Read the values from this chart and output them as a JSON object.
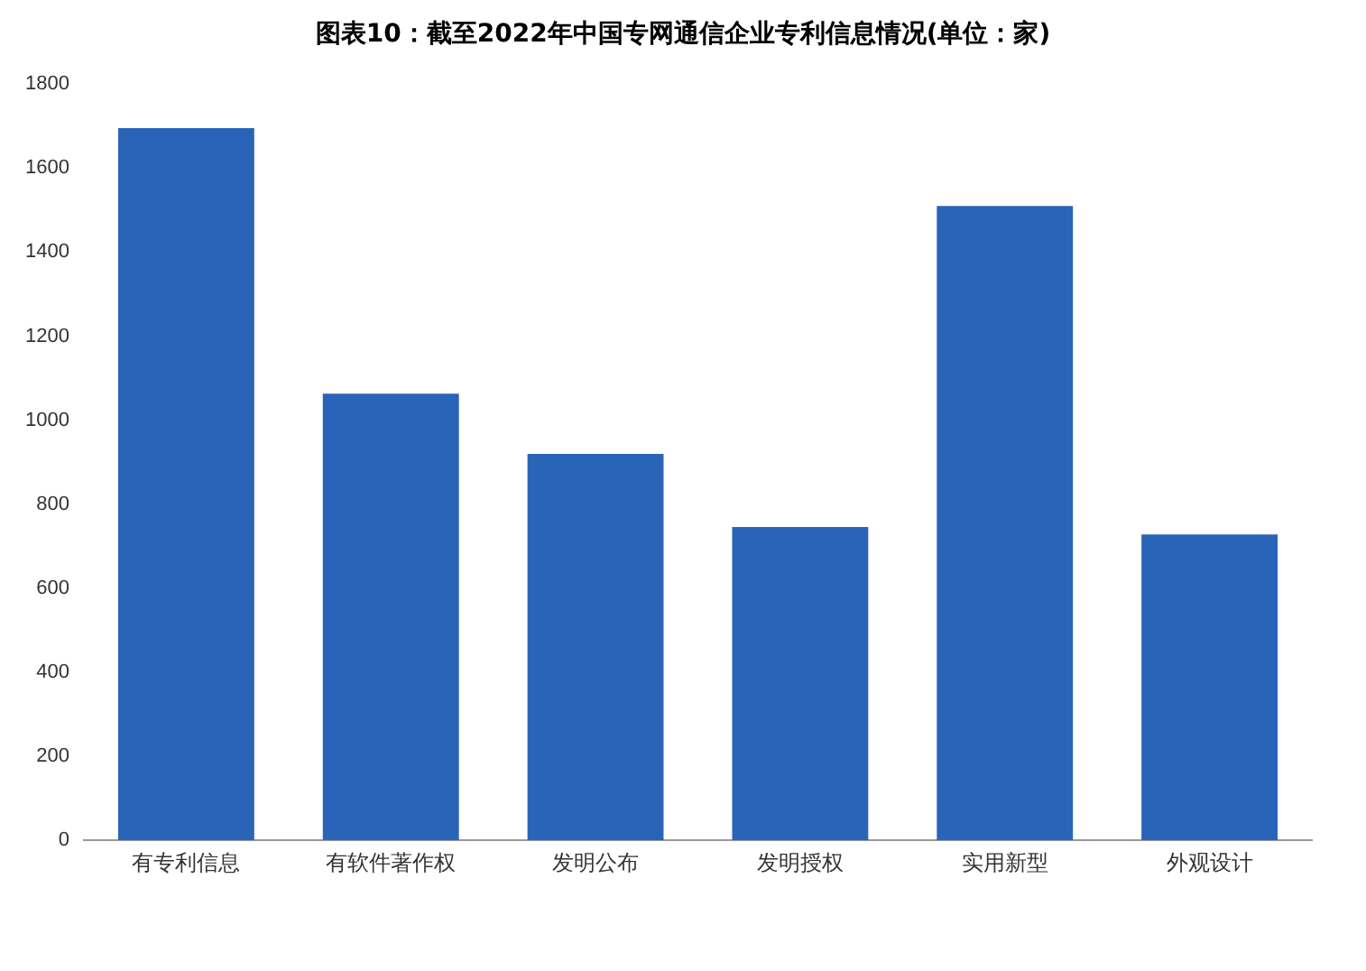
{
  "chart_data": {
    "type": "bar",
    "title": "图表10：截至2022年中国专网通信企业专利信息情况(单位：家)",
    "categories": [
      "有专利信息",
      "有软件著作权",
      "发明公布",
      "发明授权",
      "实用新型",
      "外观设计"
    ],
    "values": [
      1695,
      1063,
      920,
      746,
      1510,
      728
    ],
    "color": "#2a64b8",
    "ylim": [
      0,
      1800
    ],
    "yticks": [
      0,
      200,
      400,
      600,
      800,
      1000,
      1200,
      1400,
      1600,
      1800
    ],
    "grid": false,
    "legend": false
  }
}
